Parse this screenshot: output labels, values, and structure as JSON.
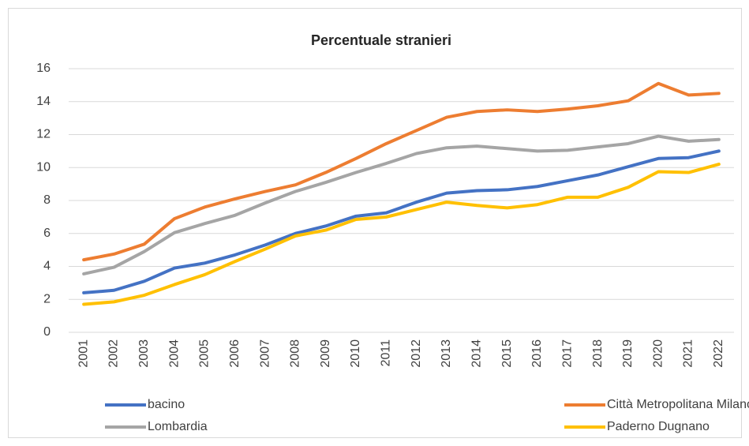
{
  "chart_data": {
    "type": "line",
    "title": "Percentuale stranieri",
    "categories": [
      "2001",
      "2002",
      "2003",
      "2004",
      "2005",
      "2006",
      "2007",
      "2008",
      "2009",
      "2010",
      "2011",
      "2012",
      "2013",
      "2014",
      "2015",
      "2016",
      "2017",
      "2018",
      "2019",
      "2020",
      "2021",
      "2022"
    ],
    "series": [
      {
        "name": "bacino",
        "color": "#4472c4",
        "values": [
          2.4,
          2.55,
          3.1,
          3.9,
          4.2,
          4.7,
          5.3,
          6.0,
          6.45,
          7.05,
          7.25,
          7.9,
          8.45,
          8.6,
          8.65,
          8.85,
          9.2,
          9.55,
          10.05,
          10.55,
          10.6,
          11.0
        ]
      },
      {
        "name": "Città Metropolitana Milano",
        "color": "#ed7d31",
        "values": [
          4.4,
          4.75,
          5.35,
          6.9,
          7.6,
          8.1,
          8.55,
          8.95,
          9.7,
          10.55,
          11.45,
          12.25,
          13.05,
          13.4,
          13.5,
          13.4,
          13.55,
          13.75,
          14.05,
          15.1,
          14.4,
          14.5
        ]
      },
      {
        "name": "Lombardia",
        "color": "#a5a5a5",
        "values": [
          3.55,
          3.95,
          4.9,
          6.05,
          6.6,
          7.1,
          7.85,
          8.55,
          9.1,
          9.7,
          10.25,
          10.85,
          11.2,
          11.3,
          11.15,
          11.0,
          11.05,
          11.25,
          11.45,
          11.9,
          11.6,
          11.7
        ]
      },
      {
        "name": "Paderno Dugnano",
        "color": "#ffc000",
        "values": [
          1.7,
          1.85,
          2.25,
          2.9,
          3.5,
          4.3,
          5.05,
          5.85,
          6.2,
          6.85,
          7.0,
          7.45,
          7.9,
          7.7,
          7.55,
          7.75,
          8.2,
          8.2,
          8.8,
          9.75,
          9.7,
          10.2
        ]
      }
    ],
    "ylim": [
      0,
      16
    ],
    "yticks": [
      0,
      2,
      4,
      6,
      8,
      10,
      12,
      14,
      16
    ],
    "grid": true,
    "legend": "bottom"
  }
}
